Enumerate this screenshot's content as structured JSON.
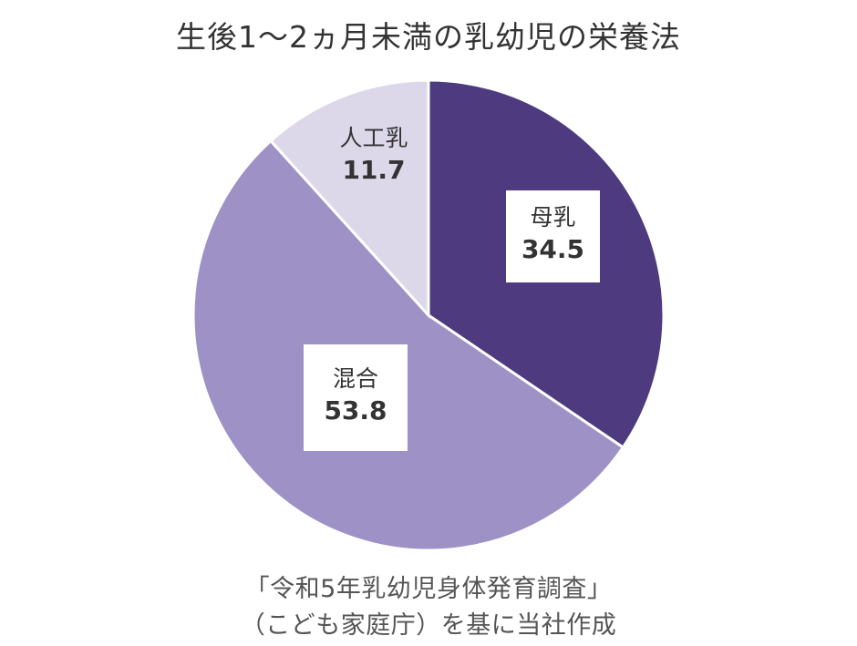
{
  "title": "生後1〜2ヵ月未満の乳幼児の栄養法",
  "chart_data": {
    "type": "pie",
    "title": "生後1〜2ヵ月未満の乳幼児の栄養法",
    "categories": [
      "母乳",
      "混合",
      "人工乳"
    ],
    "values": [
      34.5,
      53.8,
      11.7
    ],
    "unit": "%",
    "start_angle_deg": 0,
    "direction": "clockwise from 12 o'clock",
    "colors": [
      "#4e3a7e",
      "#9d91c6",
      "#dcd8ea"
    ],
    "legend": "none (labels inside slices)"
  },
  "slices": [
    {
      "name": "母乳",
      "value": "34.5",
      "color": "#4e3a7e"
    },
    {
      "name": "混合",
      "value": "53.8",
      "color": "#9d91c6"
    },
    {
      "name": "人工乳",
      "value": "11.7",
      "color": "#dcd8ea"
    }
  ],
  "source": {
    "line1": "「令和5年乳幼児身体発育調査」",
    "line2": "（こども家庭庁）を基に当社作成"
  }
}
